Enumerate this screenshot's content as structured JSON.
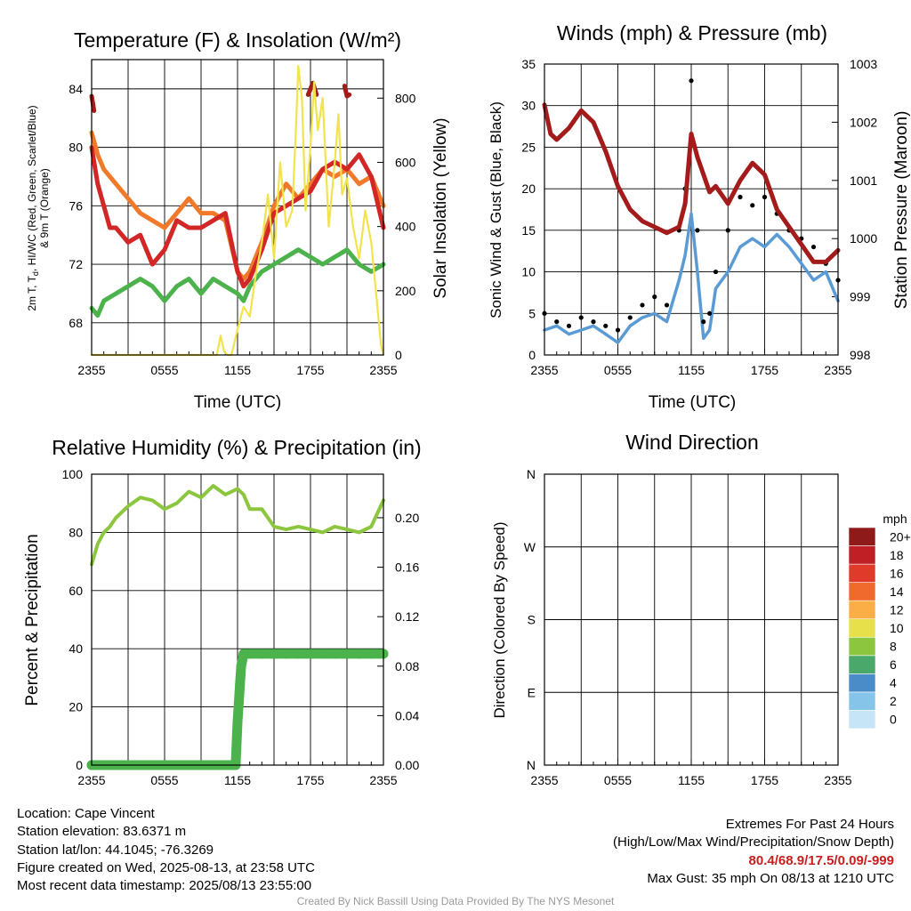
{
  "panels": {
    "temperature": {
      "title": "Temperature (F) & Insolation (W/m²)",
      "ylabel_left_1": "2m T, T",
      "ylabel_left_sub": "d",
      "ylabel_left_2": ", HI/WC (Red, Green, Scarlet/Blue)",
      "ylabel_left_3": "& 9m T (Orange)",
      "ylabel_right": "Solar Insolation (Yellow)",
      "xlabel": "Time (UTC)"
    },
    "winds": {
      "title": "Winds (mph) & Pressure (mb)",
      "ylabel_left": "Sonic Wind & Gust (Blue, Black)",
      "ylabel_right": "Station Pressure (Maroon)",
      "xlabel": "Time (UTC)"
    },
    "humidity": {
      "title": "Relative Humidity (%) & Precipitation (in)",
      "ylabel_left": "Percent & Precipitation"
    },
    "direction": {
      "title": "Wind Direction",
      "ylabel_left": "Direction (Colored By Speed)",
      "colorbar_title": "mph"
    }
  },
  "chart_data": [
    {
      "type": "line",
      "title": "Temperature (F) & Insolation (W/m²)",
      "xlabel": "Time (UTC)",
      "x_ticks": [
        "2355",
        "0555",
        "1155",
        "1755",
        "2355"
      ],
      "xlim_hours": [
        0,
        24
      ],
      "y_left_ticks": [
        68,
        72,
        76,
        80,
        84
      ],
      "ylim_left": [
        65.8,
        86
      ],
      "y_right_ticks": [
        0,
        200,
        400,
        600,
        800
      ],
      "ylim_right": [
        0,
        920
      ],
      "grid": true,
      "series": [
        {
          "color": "#a31b1b",
          "axis": "left",
          "x": [
            0,
            0.1,
            0.2,
            17.8,
            18.2,
            18.5,
            20.8,
            21.0,
            21.2
          ],
          "y": [
            83.5,
            83,
            82.5,
            83.6,
            84.4,
            83.6,
            84.2,
            83.5,
            83.6
          ]
        },
        {
          "color": "#f07a2a",
          "axis": "left",
          "x": [
            0,
            0.5,
            1,
            2,
            3,
            4,
            5,
            6,
            7,
            8,
            9,
            10,
            11,
            12,
            12.5,
            13,
            14,
            15,
            16,
            17,
            18,
            19,
            20,
            21,
            22,
            23,
            24
          ],
          "y": [
            81,
            79.5,
            78.5,
            77.5,
            76.5,
            75.5,
            75,
            74.5,
            75.5,
            76.5,
            75.5,
            75.5,
            75,
            71.5,
            71,
            71.5,
            73.5,
            76,
            77.5,
            76.5,
            77.5,
            78.5,
            78,
            78.5,
            77.5,
            78,
            76
          ]
        },
        {
          "color": "#d32626",
          "axis": "left",
          "x": [
            0,
            0.5,
            1,
            1.5,
            2,
            3,
            4,
            5,
            6,
            7,
            8,
            9,
            10,
            11,
            12,
            12.5,
            13,
            14,
            15,
            16,
            17,
            18,
            19,
            20,
            21,
            22,
            23,
            24
          ],
          "y": [
            80,
            77.5,
            76,
            74.5,
            74.5,
            73.5,
            74,
            72,
            73,
            75,
            74.5,
            74.5,
            75,
            75.5,
            71.5,
            70.5,
            71,
            73,
            75.5,
            76,
            76.5,
            77,
            78.5,
            79,
            78.5,
            79.5,
            78,
            74.5
          ]
        },
        {
          "color": "#4cb34c",
          "axis": "left",
          "x": [
            0,
            0.5,
            1,
            2,
            3,
            4,
            5,
            6,
            7,
            8,
            9,
            10,
            11,
            12,
            12.5,
            13,
            14,
            15,
            16,
            17,
            18,
            19,
            20,
            21,
            22,
            23,
            24
          ],
          "y": [
            69,
            68.5,
            69.5,
            70,
            70.5,
            71,
            70.5,
            69.5,
            70.5,
            71,
            70,
            71,
            70.5,
            70,
            69.5,
            70.5,
            71.5,
            72,
            72.5,
            73,
            72.5,
            72,
            72.5,
            73,
            72,
            71.5,
            72
          ]
        },
        {
          "color": "#f2e34d",
          "axis": "right",
          "x": [
            0,
            10.3,
            10.6,
            10.9,
            11.2,
            11.5,
            12,
            12.5,
            13,
            13.5,
            14,
            14.5,
            15,
            15.5,
            16,
            16.5,
            16.8,
            17,
            17.3,
            17.6,
            18,
            18.3,
            18.6,
            19,
            19.5,
            20,
            20.3,
            20.6,
            21,
            21.5,
            22,
            22.5,
            23,
            23.5,
            23.8,
            24
          ],
          "y": [
            0,
            0,
            60,
            10,
            0,
            0,
            80,
            150,
            120,
            250,
            350,
            500,
            300,
            600,
            400,
            450,
            700,
            900,
            800,
            450,
            650,
            850,
            700,
            800,
            400,
            600,
            750,
            500,
            550,
            400,
            300,
            450,
            350,
            150,
            30,
            0
          ]
        }
      ]
    },
    {
      "type": "line",
      "title": "Winds (mph) & Pressure (mb)",
      "xlabel": "Time (UTC)",
      "x_ticks": [
        "2355",
        "0555",
        "1155",
        "1755",
        "2355"
      ],
      "xlim_hours": [
        0,
        24
      ],
      "y_left_ticks": [
        0,
        5,
        10,
        15,
        20,
        25,
        30,
        35
      ],
      "ylim_left": [
        0,
        35
      ],
      "y_right_ticks": [
        998,
        999,
        1000,
        1001,
        1002,
        1003
      ],
      "ylim_right": [
        998,
        1003
      ],
      "grid": true,
      "series": [
        {
          "color": "#5b9bd5",
          "axis": "left",
          "x": [
            0,
            1,
            2,
            3,
            4,
            5,
            6,
            7,
            8,
            9,
            10,
            11,
            11.5,
            12,
            12.5,
            13,
            13.5,
            14,
            15,
            16,
            17,
            18,
            19,
            20,
            21,
            22,
            23,
            24
          ],
          "y": [
            3,
            3.5,
            2.5,
            3,
            3.5,
            2.5,
            1.5,
            3.5,
            4.5,
            5,
            4,
            9,
            12,
            17,
            10,
            2,
            3,
            8,
            10,
            13,
            14,
            13,
            14.5,
            13,
            11,
            9,
            10,
            6.5
          ]
        },
        {
          "color": "#000000",
          "axis": "left",
          "x": [
            0,
            1,
            2,
            3,
            4,
            5,
            6,
            7,
            8,
            9,
            10,
            11,
            11.5,
            12,
            12.5,
            13,
            13.5,
            14,
            15,
            16,
            17,
            18,
            19,
            20,
            21,
            22,
            23,
            24
          ],
          "y": [
            5,
            4,
            3.5,
            4.5,
            4,
            3.5,
            3,
            4.5,
            6,
            7,
            6,
            15,
            20,
            33,
            15,
            4,
            5,
            10,
            15,
            19,
            18,
            19,
            17,
            15,
            14,
            13,
            11,
            9
          ]
        },
        {
          "color": "#a31b1b",
          "axis": "right",
          "x": [
            0,
            0.5,
            1,
            2,
            3,
            4,
            5,
            6,
            7,
            8,
            9,
            10,
            11,
            11.5,
            12,
            12.5,
            13,
            13.5,
            14,
            15,
            16,
            17,
            18,
            19,
            20,
            21,
            22,
            23,
            24
          ],
          "y": [
            1002.3,
            1001.8,
            1001.7,
            1001.9,
            1002.2,
            1002.0,
            1001.5,
            1000.9,
            1000.5,
            1000.3,
            1000.2,
            1000.1,
            1000.2,
            1000.6,
            1001.8,
            1001.4,
            1001.1,
            1000.8,
            1000.9,
            1000.6,
            1001.0,
            1001.3,
            1001.1,
            1000.5,
            1000.2,
            999.9,
            999.6,
            999.6,
            999.8
          ]
        }
      ]
    },
    {
      "type": "line",
      "title": "Relative Humidity (%) & Precipitation (in)",
      "x_ticks": [
        "2355",
        "0555",
        "1155",
        "1755",
        "2355"
      ],
      "xlim_hours": [
        0,
        24
      ],
      "y_left_ticks": [
        0,
        20,
        40,
        60,
        80,
        100
      ],
      "ylim_left": [
        0,
        100
      ],
      "y_right_ticks": [
        "0.00",
        "0.04",
        "0.08",
        "0.12",
        "0.16",
        "0.20"
      ],
      "ylim_right": [
        0,
        0.2352
      ],
      "grid": true,
      "series": [
        {
          "color": "#8cc63f",
          "axis": "left",
          "x": [
            0,
            0.5,
            1,
            1.5,
            2,
            3,
            4,
            5,
            6,
            7,
            8,
            9,
            10,
            11,
            12,
            12.5,
            13,
            14,
            15,
            16,
            17,
            18,
            19,
            20,
            21,
            22,
            23,
            24
          ],
          "y": [
            69,
            76,
            80,
            82,
            85,
            89,
            92,
            91,
            88,
            90,
            94,
            92,
            96,
            93,
            95,
            93,
            88,
            88,
            82,
            81,
            82,
            81,
            80,
            82,
            81,
            80,
            82,
            91
          ]
        },
        {
          "color": "#4cb34c",
          "axis": "right",
          "x": [
            0,
            1,
            2,
            3,
            4,
            5,
            6,
            7,
            8,
            9,
            10,
            11,
            11.85,
            12,
            12.1,
            12.2,
            12.3,
            12.5,
            13,
            14,
            15,
            16,
            17,
            18,
            19,
            20,
            21,
            22,
            23,
            24
          ],
          "y": [
            0,
            0,
            0,
            0,
            0,
            0,
            0,
            0,
            0,
            0,
            0,
            0,
            0,
            0.035,
            0.05,
            0.065,
            0.08,
            0.09,
            0.09,
            0.09,
            0.09,
            0.09,
            0.09,
            0.09,
            0.09,
            0.09,
            0.09,
            0.09,
            0.09,
            0.09
          ]
        }
      ]
    },
    {
      "type": "scatter",
      "title": "Wind Direction",
      "ylabel": "Direction (Colored By Speed)",
      "x_ticks": [
        "2355",
        "0555",
        "1155",
        "1755",
        "2355"
      ],
      "xlim_hours": [
        0,
        24
      ],
      "y_ticks": [
        "N",
        "E",
        "S",
        "W",
        "N"
      ],
      "ylim_degrees": [
        0,
        360
      ],
      "grid": true,
      "colorbar": {
        "title": "mph",
        "labels": [
          "0",
          "2",
          "4",
          "6",
          "8",
          "10",
          "12",
          "14",
          "16",
          "18",
          "20+"
        ],
        "colors": [
          "#c6e6f7",
          "#86c4ea",
          "#4a8cc8",
          "#4aa86b",
          "#8cc63f",
          "#e8e04a",
          "#fbae45",
          "#f16a2d",
          "#e03a2a",
          "#c01f25",
          "#8e1a1a"
        ]
      }
    }
  ],
  "info": {
    "location": "Location: Cape Vincent",
    "elevation": "Station elevation: 83.6371 m",
    "latlon": "Station lat/lon: 44.1045; -76.3269",
    "created": "Figure created on Wed, 2025-08-13, at 23:58 UTC",
    "recent": "Most recent data timestamp: 2025/08/13 23:55:00"
  },
  "extremes": {
    "title": "Extremes For Past 24 Hours",
    "subtitle": "(High/Low/Max Wind/Precipitation/Snow Depth)",
    "values": "80.4/68.9/17.5/0.09/-999",
    "gust": "Max Gust: 35 mph On 08/13 at 1210 UTC"
  },
  "credit": "Created By Nick Bassill Using Data Provided By The NYS Mesonet"
}
